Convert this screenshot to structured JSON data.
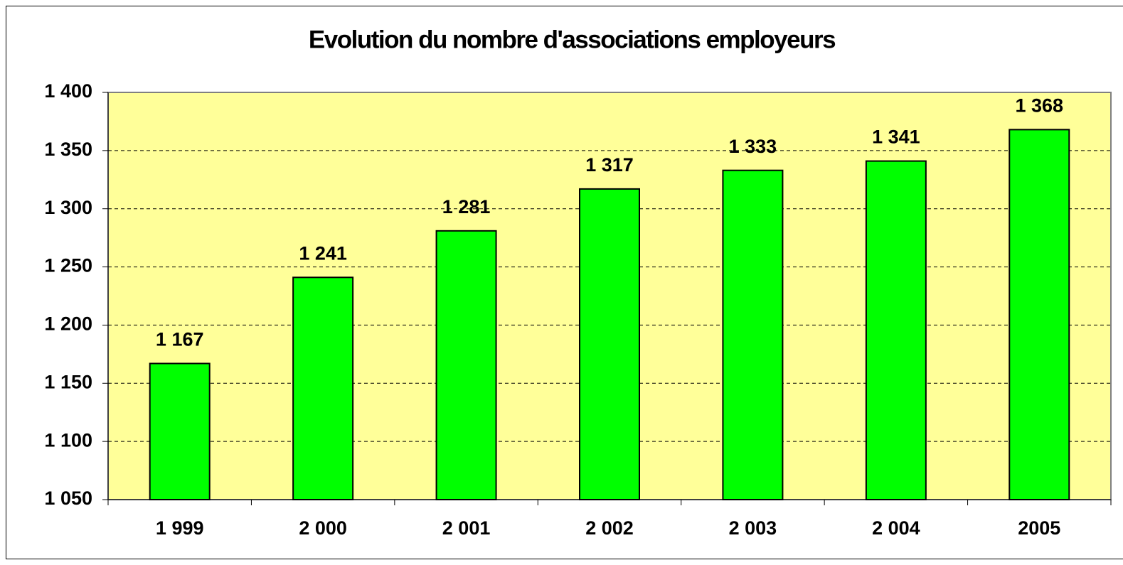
{
  "chart_data": {
    "type": "bar",
    "title": "Evolution du nombre d'associations employeurs",
    "categories": [
      "1 999",
      "2 000",
      "2 001",
      "2 002",
      "2 003",
      "2 004",
      "2005"
    ],
    "values": [
      1167,
      1241,
      1281,
      1317,
      1333,
      1341,
      1368
    ],
    "value_labels": [
      "1 167",
      "1 241",
      "1 281",
      "1 317",
      "1 333",
      "1 341",
      "1 368"
    ],
    "color": "#00ff00",
    "ylim": [
      1050,
      1400
    ],
    "yticks": [
      {
        "value": 1050,
        "label": "1 050"
      },
      {
        "value": 1100,
        "label": "1 100"
      },
      {
        "value": 1150,
        "label": "1 150"
      },
      {
        "value": 1200,
        "label": "1 200"
      },
      {
        "value": 1250,
        "label": "1 250"
      },
      {
        "value": 1300,
        "label": "1 300"
      },
      {
        "value": 1350,
        "label": "1 350"
      },
      {
        "value": 1400,
        "label": "1 400"
      }
    ],
    "grid": true
  }
}
